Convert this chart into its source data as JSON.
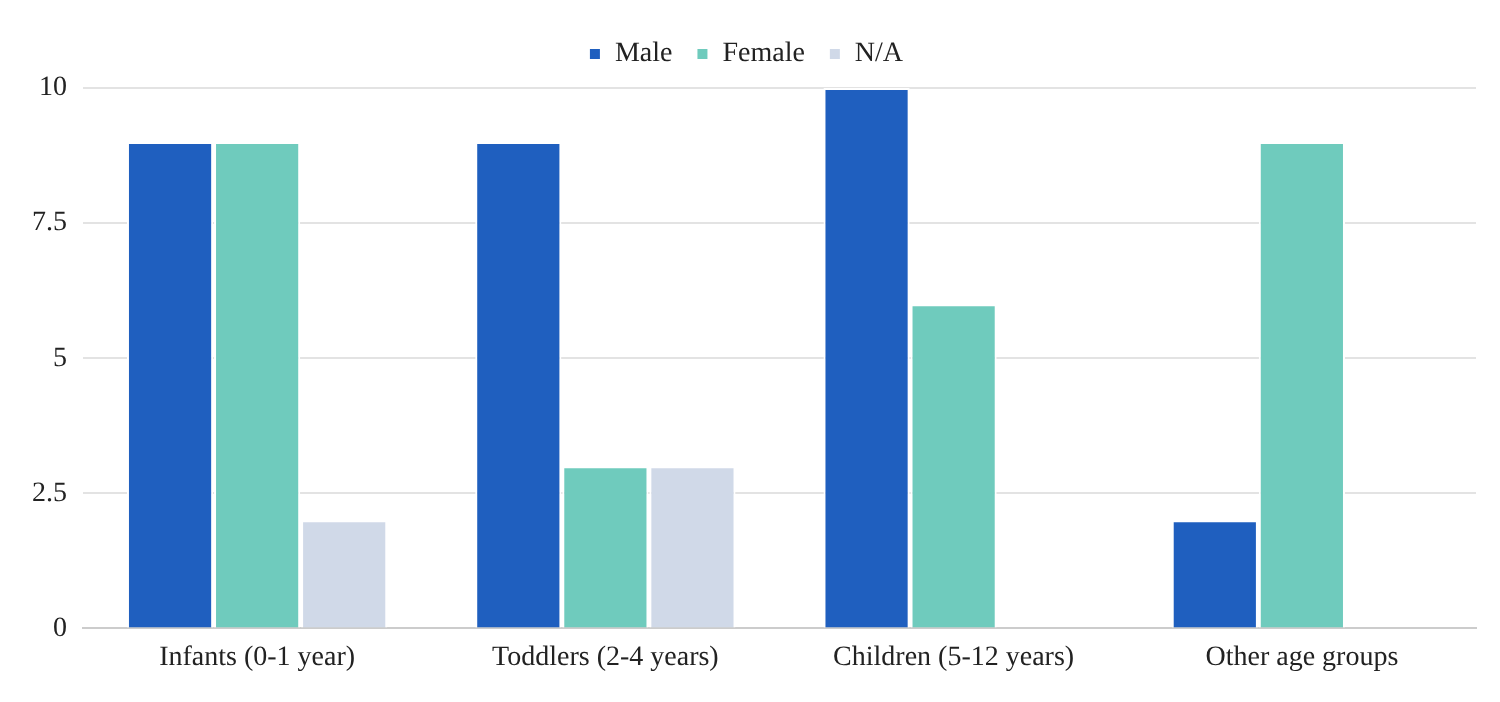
{
  "chart_data": {
    "type": "bar",
    "categories": [
      "Infants (0-1 year)",
      "Toddlers (2-4 years)",
      "Children (5-12 years)",
      "Other age groups"
    ],
    "series": [
      {
        "name": "Male",
        "color": "#1f5fbf",
        "values": [
          9,
          9,
          10,
          2
        ]
      },
      {
        "name": "Female",
        "color": "#6fcbbd",
        "values": [
          9,
          3,
          6,
          9
        ]
      },
      {
        "name": "N/A",
        "color": "#d0d9e8",
        "values": [
          2,
          3,
          0,
          0
        ]
      }
    ],
    "ylim": [
      0,
      10
    ],
    "yticks": [
      0,
      2.5,
      5,
      7.5,
      10
    ],
    "grid": "y",
    "legend": "top"
  }
}
